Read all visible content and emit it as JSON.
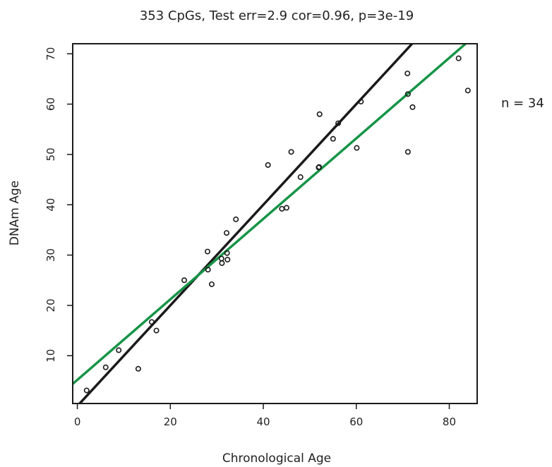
{
  "chart_data": {
    "type": "scatter",
    "title": "353 CpGs, Test err=2.9 cor=0.96, p=3e-19",
    "xlabel": "Chronological Age",
    "ylabel": "DNAm Age",
    "annotation": "n = 34",
    "xlim": [
      -1,
      86
    ],
    "ylim": [
      0.5,
      72
    ],
    "xticks": [
      0,
      20,
      40,
      60,
      80
    ],
    "yticks": [
      10,
      20,
      30,
      40,
      50,
      60,
      70
    ],
    "grid": false,
    "points": [
      {
        "x": 2,
        "y": 3.1
      },
      {
        "x": 6.1,
        "y": 7.7
      },
      {
        "x": 8.9,
        "y": 11.1
      },
      {
        "x": 13.1,
        "y": 7.4
      },
      {
        "x": 16,
        "y": 16.7
      },
      {
        "x": 17,
        "y": 15
      },
      {
        "x": 23,
        "y": 25
      },
      {
        "x": 28,
        "y": 30.7
      },
      {
        "x": 28.1,
        "y": 27.1
      },
      {
        "x": 28.9,
        "y": 24.2
      },
      {
        "x": 31,
        "y": 29.3
      },
      {
        "x": 31.1,
        "y": 28.4
      },
      {
        "x": 32.1,
        "y": 34.4
      },
      {
        "x": 32.2,
        "y": 30.4
      },
      {
        "x": 32.3,
        "y": 29.1
      },
      {
        "x": 34.1,
        "y": 37.1
      },
      {
        "x": 41,
        "y": 47.9
      },
      {
        "x": 44,
        "y": 39.2
      },
      {
        "x": 45,
        "y": 39.4
      },
      {
        "x": 46,
        "y": 50.5
      },
      {
        "x": 48,
        "y": 45.5
      },
      {
        "x": 52,
        "y": 47.5
      },
      {
        "x": 52.1,
        "y": 58
      },
      {
        "x": 55,
        "y": 53.1
      },
      {
        "x": 56.1,
        "y": 56.2
      },
      {
        "x": 60.1,
        "y": 51.3
      },
      {
        "x": 61,
        "y": 60.5
      },
      {
        "x": 71,
        "y": 66.1
      },
      {
        "x": 71.1,
        "y": 62
      },
      {
        "x": 71.1,
        "y": 50.5
      },
      {
        "x": 72.1,
        "y": 59.4
      },
      {
        "x": 82,
        "y": 69.1
      },
      {
        "x": 84,
        "y": 62.7
      },
      {
        "x": 51.9,
        "y": 47.4
      }
    ],
    "lines": [
      {
        "name": "identity",
        "color": "#1a1a1a",
        "slope": 1.0,
        "intercept": 0.0
      },
      {
        "name": "fit",
        "color": "#169447",
        "slope": 0.8,
        "intercept": 5.2
      }
    ]
  }
}
